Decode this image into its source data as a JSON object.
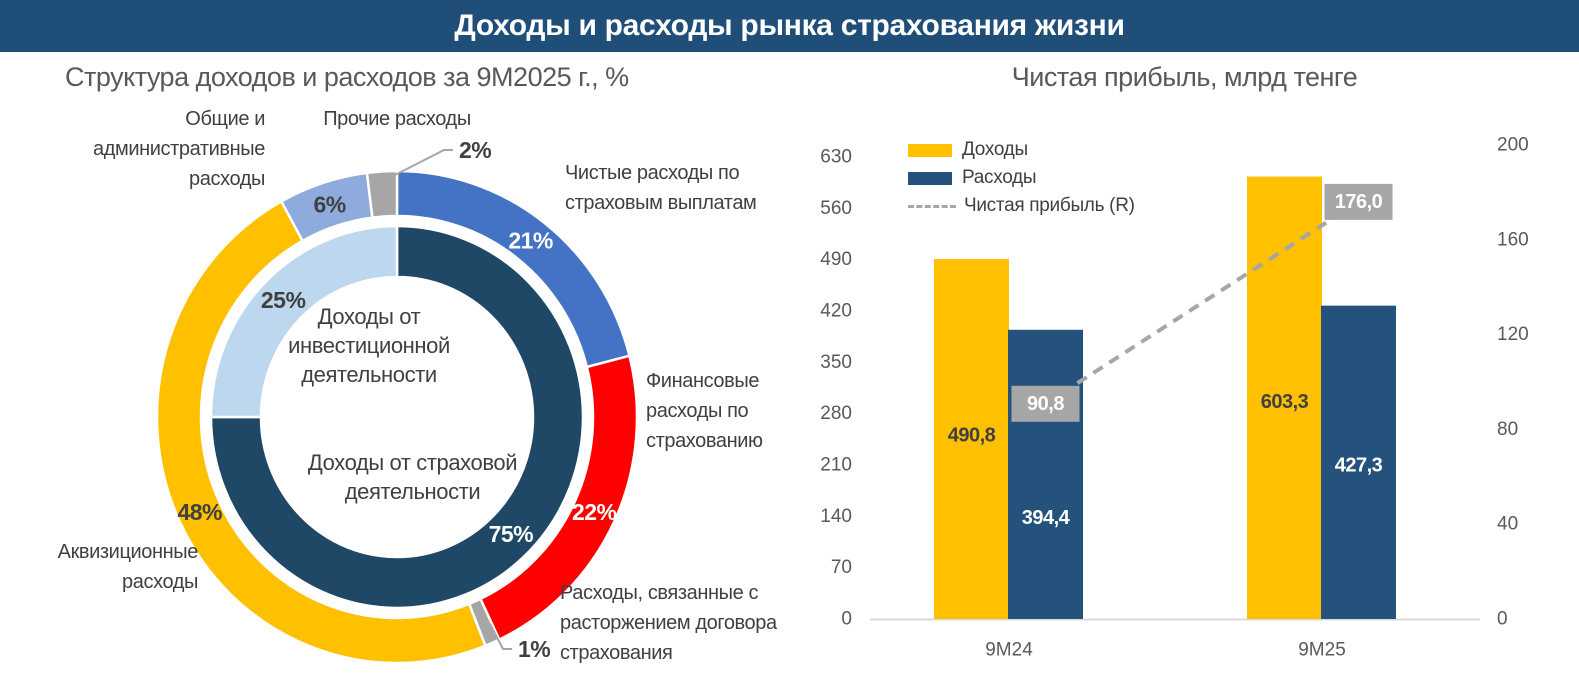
{
  "page_title": "Доходы и расходы рынка страхования жизни",
  "colors": {
    "header_bar": "#1F4E79",
    "income_yellow": "#FFC000",
    "expense_navy": "#24527C",
    "net_profit_gray": "#A6A6A6",
    "axis_text": "#595959",
    "label_text": "#404040",
    "axis_line": "#D9D9D9",
    "label_box_bg": "#A6A6A6"
  },
  "chart_data": [
    {
      "type": "pie",
      "subtype": "double_ring_donut",
      "title": "Структура доходов и расходов за 9М2025 г., %",
      "units": "%",
      "outer_ring": {
        "name": "Структура расходов",
        "slices": [
          {
            "label": "Чистые расходы по страховым выплатам",
            "value": 21,
            "color": "#4472C4",
            "label_color": "#FFFFFF",
            "label_placement": "inside"
          },
          {
            "label": "Финансовые расходы по страхованию",
            "value": 22,
            "color": "#FF0000",
            "label_color": "#FFFFFF",
            "label_placement": "inside"
          },
          {
            "label": "Расходы, связанные с расторжением договора страхования",
            "value": 1,
            "color": "#A6A6A6",
            "label_color": "#404040",
            "label_placement": "callout"
          },
          {
            "label": "Аквизиционные расходы",
            "value": 48,
            "color": "#FFC000",
            "label_color": "#404040",
            "label_placement": "inside"
          },
          {
            "label": "Общие и административные расходы",
            "value": 6,
            "color": "#8FAADC",
            "label_color": "#404040",
            "label_placement": "inside"
          },
          {
            "label": "Прочие расходы",
            "value": 2,
            "color": "#A6A6A6",
            "label_color": "#404040",
            "label_placement": "callout"
          }
        ]
      },
      "inner_ring": {
        "name": "Структура доходов",
        "slices": [
          {
            "label": "Доходы от страховой деятельности",
            "value": 75,
            "color": "#1F4766",
            "label_color": "#FFFFFF",
            "label_placement": "inside"
          },
          {
            "label": "Доходы от инвестиционной деятельности",
            "value": 25,
            "color": "#BDD7EE",
            "label_color": "#404040",
            "label_placement": "inside"
          }
        ]
      },
      "center_labels": [
        "Доходы от инвестиционной деятельности",
        "Доходы от страховой деятельности"
      ],
      "legend_position": "none",
      "grid": false
    },
    {
      "type": "bar",
      "subtype": "grouped_bars_with_line",
      "title": "Чистая прибыль, млрд тенге",
      "categories": [
        "9М24",
        "9М25"
      ],
      "series": [
        {
          "name": "Доходы",
          "render": "bar",
          "color": "#FFC000",
          "values": [
            490.8,
            603.3
          ],
          "value_labels": [
            "490,8",
            "603,3"
          ],
          "label_colors": [
            "#404040",
            "#404040"
          ]
        },
        {
          "name": "Расходы",
          "render": "bar",
          "color": "#24527C",
          "values": [
            394.4,
            427.3
          ],
          "value_labels": [
            "394,4",
            "427,3"
          ],
          "label_colors": [
            "#FFFFFF",
            "#FFFFFF"
          ]
        },
        {
          "name": "Чистая прибыль (R)",
          "render": "dashed_line",
          "axis": "right",
          "color": "#A6A6A6",
          "values": [
            90.8,
            176.0
          ],
          "value_labels": [
            "90,8",
            "176,0"
          ],
          "label_style": "gray_box_white_text"
        }
      ],
      "left_axis": {
        "min": 0,
        "max": 630,
        "step": 70,
        "ticks": [
          0,
          70,
          140,
          210,
          280,
          350,
          420,
          490,
          560,
          630
        ]
      },
      "right_axis": {
        "min": 0,
        "max": 200,
        "step": 40,
        "ticks": [
          0,
          40,
          80,
          120,
          160,
          200
        ]
      },
      "legend_position": "top-left-inside",
      "grid": false
    }
  ]
}
